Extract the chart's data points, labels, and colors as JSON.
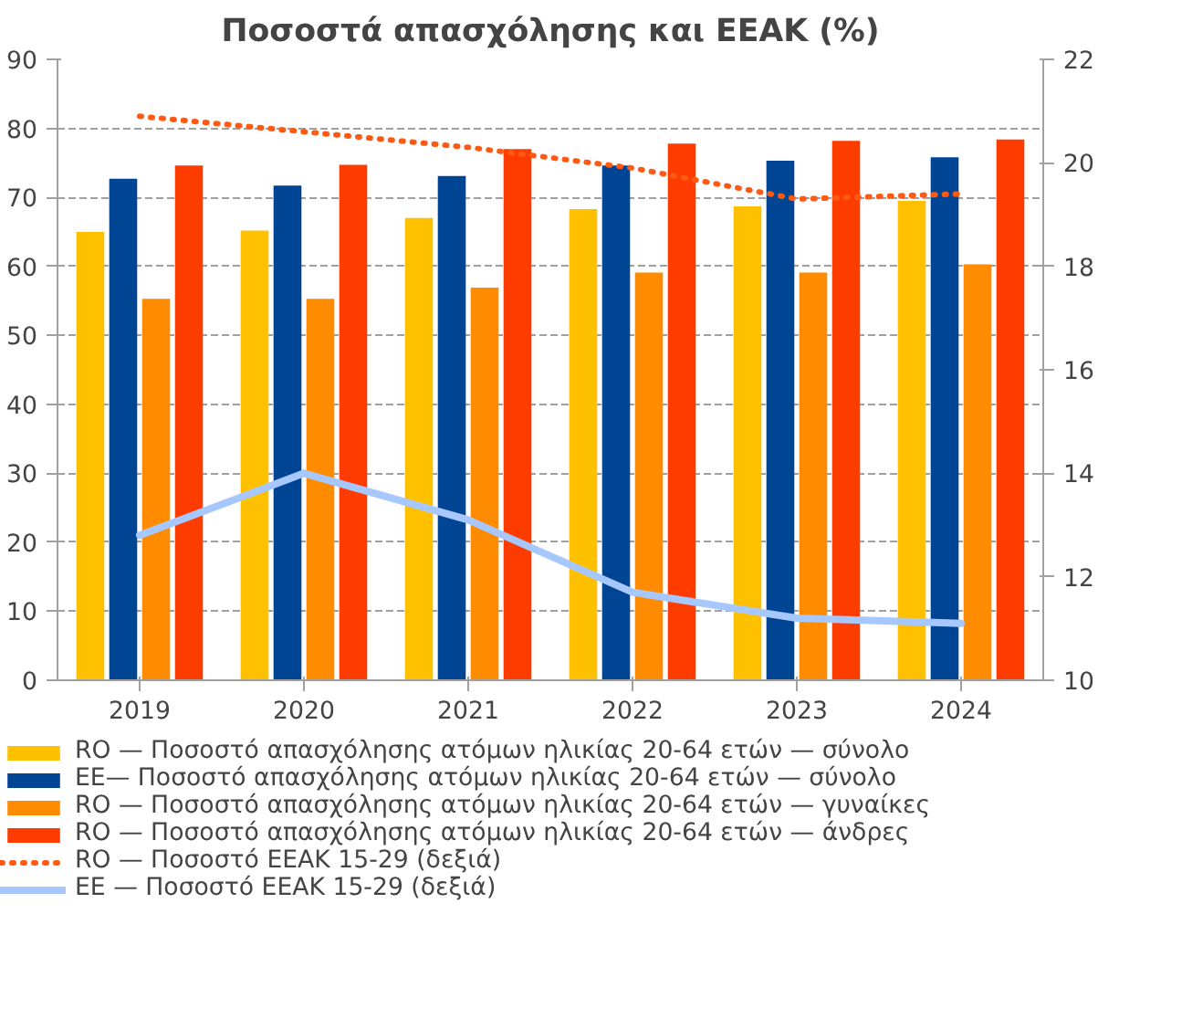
{
  "chart_data": {
    "type": "bar",
    "title": "Ποσοστά απασχόλησης και ΕΕΑΚ (%)",
    "categories": [
      "2019",
      "2020",
      "2021",
      "2022",
      "2023",
      "2024"
    ],
    "series": [
      {
        "name": "RO — Ποσοστό απασχόλησης ατόμων ηλικίας 20-64 ετών — σύνολο",
        "color": "#ffc000",
        "values": [
          65.0,
          65.2,
          67.0,
          68.3,
          68.7,
          69.5
        ]
      },
      {
        "name": "EE— Ποσοστό απασχόλησης ατόμων ηλικίας 20-64 ετών — σύνολο",
        "color": "#004494",
        "values": [
          72.7,
          71.7,
          73.1,
          74.6,
          75.3,
          75.8
        ]
      },
      {
        "name": "RO — Ποσοστό απασχόλησης ατόμων ηλικίας 20-64 ετών — γυναίκες",
        "color": "#ff8c00",
        "values": [
          55.3,
          55.3,
          56.9,
          59.1,
          59.1,
          60.3
        ]
      },
      {
        "name": "RO — Ποσοστό απασχόλησης ατόμων ηλικίας 20-64 ετών — άνδρες",
        "color": "#ff3c00",
        "values": [
          74.6,
          74.7,
          77.0,
          77.8,
          78.2,
          78.4
        ]
      },
      {
        "name": "RO — Ποσοστό ΕΕΑΚ 15-29 (δεξιά)",
        "type": "line",
        "axis": "y2",
        "line_style": "dotted",
        "color": "#ff5a14",
        "values": [
          20.9,
          20.6,
          20.3,
          19.9,
          19.3,
          19.4
        ]
      },
      {
        "name": "EE — Ποσοστό ΕΕΑΚ 15-29 (δεξιά)",
        "type": "line",
        "axis": "y2",
        "line_style": "solid",
        "color": "#a6c8ff",
        "values": [
          12.8,
          14.0,
          13.1,
          11.7,
          11.2,
          11.1
        ]
      }
    ],
    "ylim": [
      0,
      90
    ],
    "yticks": [
      0,
      10,
      20,
      30,
      40,
      50,
      60,
      70,
      80,
      90
    ],
    "y2lim": [
      10,
      22
    ],
    "y2ticks": [
      10,
      12,
      14,
      16,
      18,
      20,
      22
    ],
    "grid": "y",
    "legend": "bottom"
  }
}
